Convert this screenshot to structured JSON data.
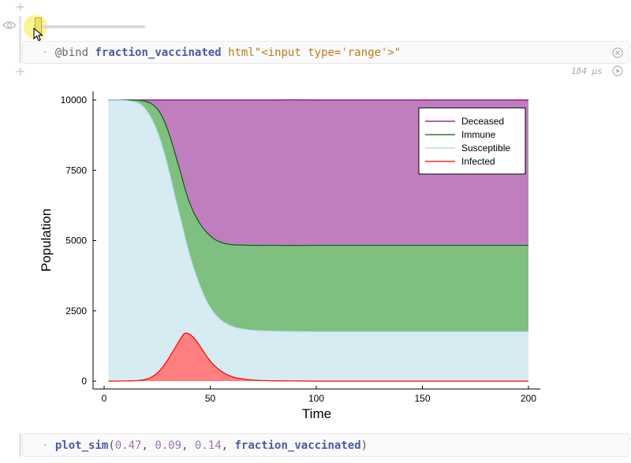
{
  "notebook": {
    "slider_cell": {
      "slider_value": 0.0
    },
    "bind_cell": {
      "macro": "@bind",
      "variable": "fraction_vaccinated",
      "html_prefix": "html",
      "html_string": "\"<input type='range'>\"",
      "runtime": "184 μs"
    },
    "plot_cell": {
      "function": "plot_sim",
      "open_paren": "(",
      "arg1": "0.47",
      "arg2": "0.09",
      "arg3": "0.14",
      "arg4": "fraction_vaccinated",
      "close_paren": ")",
      "sep": ", "
    },
    "line_marker": "·"
  },
  "icons": {
    "add": "plus-icon",
    "eye": "eye-icon",
    "close": "close-icon",
    "run": "run-icon",
    "cursor": "mouse-pointer-icon"
  },
  "colors": {
    "deceased": "#7f007f",
    "deceased_fill": "#bf7fbf",
    "immune": "#006400",
    "immune_fill": "#7fbf7f",
    "susceptible": "#add8e6",
    "susceptible_fill": "#d6ebf2",
    "infected": "#ff0000",
    "infected_fill": "#ff7f7f"
  },
  "chart_data": {
    "type": "area",
    "xlabel": "Time",
    "ylabel": "Population",
    "xlim": [
      0,
      200
    ],
    "ylim": [
      0,
      10000
    ],
    "xticks": [
      0,
      50,
      100,
      150,
      200
    ],
    "yticks": [
      0,
      2500,
      5000,
      7500,
      10000
    ],
    "legend_position": "top-right",
    "stacked": true,
    "x": [
      2,
      5,
      10,
      13,
      16,
      18,
      20,
      22,
      24,
      26,
      28,
      30,
      32,
      34,
      36,
      38,
      40,
      42,
      44,
      46,
      48,
      50,
      52,
      55,
      58,
      61,
      65,
      70,
      75,
      80,
      90,
      100,
      120,
      150,
      200
    ],
    "series": [
      {
        "name": "Infected",
        "values": [
          0,
          0,
          5,
          10,
          20,
          40,
          70,
          130,
          220,
          360,
          540,
          760,
          1000,
          1250,
          1510,
          1700,
          1680,
          1560,
          1380,
          1150,
          920,
          720,
          550,
          360,
          230,
          140,
          80,
          40,
          20,
          10,
          5,
          0,
          0,
          0,
          0
        ]
      },
      {
        "name": "Susceptible",
        "values": [
          10000,
          10000,
          9980,
          9950,
          9880,
          9760,
          9560,
          9260,
          8860,
          8330,
          7670,
          6890,
          6030,
          5140,
          4280,
          3470,
          2900,
          2520,
          2260,
          2090,
          1980,
          1910,
          1860,
          1820,
          1800,
          1790,
          1780,
          1770,
          1770,
          1770,
          1760,
          1760,
          1760,
          1760,
          1760
        ]
      },
      {
        "name": "Immune",
        "values": [
          0,
          0,
          15,
          40,
          95,
          180,
          310,
          490,
          690,
          900,
          1100,
          1290,
          1440,
          1560,
          1640,
          1710,
          1830,
          1960,
          2110,
          2270,
          2420,
          2540,
          2640,
          2760,
          2850,
          2920,
          2980,
          3020,
          3040,
          3050,
          3060,
          3070,
          3070,
          3070,
          3070
        ]
      },
      {
        "name": "Deceased",
        "values": [
          0,
          0,
          0,
          0,
          5,
          20,
          60,
          120,
          230,
          410,
          690,
          1060,
          1530,
          2050,
          2570,
          3120,
          3590,
          3960,
          4250,
          4490,
          4680,
          4830,
          4950,
          5060,
          5120,
          5150,
          5160,
          5170,
          5170,
          5170,
          5180,
          5170,
          5170,
          5170,
          5170
        ]
      }
    ]
  }
}
